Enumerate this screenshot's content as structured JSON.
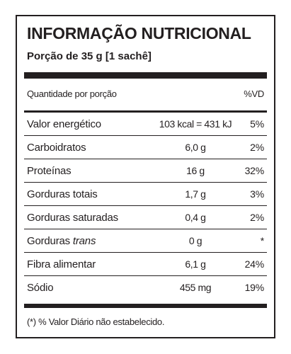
{
  "label": {
    "title": "INFORMAÇÃO NUTRICIONAL",
    "portion": "Porção de 35 g [1 sachê]",
    "header": {
      "quantity_label": "Quantidade por porção",
      "vd_label": "%VD"
    },
    "rows": [
      {
        "name": "Valor energético",
        "amount": "103 kcal = 431 kJ",
        "vd": "5%"
      },
      {
        "name": "Carboidratos",
        "amount": "6,0 g",
        "vd": "2%"
      },
      {
        "name": "Proteínas",
        "amount": "16 g",
        "vd": "32%"
      },
      {
        "name": "Gorduras totais",
        "amount": "1,7 g",
        "vd": "3%"
      },
      {
        "name": "Gorduras saturadas",
        "amount": "0,4 g",
        "vd": "2%"
      },
      {
        "name": "Gorduras",
        "name_italic": "trans",
        "amount": "0 g",
        "vd": "*"
      },
      {
        "name": "Fibra alimentar",
        "amount": "6,1 g",
        "vd": "24%"
      },
      {
        "name": "Sódio",
        "amount": "455 mg",
        "vd": "19%"
      }
    ],
    "footnote": "(*) % Valor Diário não estabelecido."
  }
}
